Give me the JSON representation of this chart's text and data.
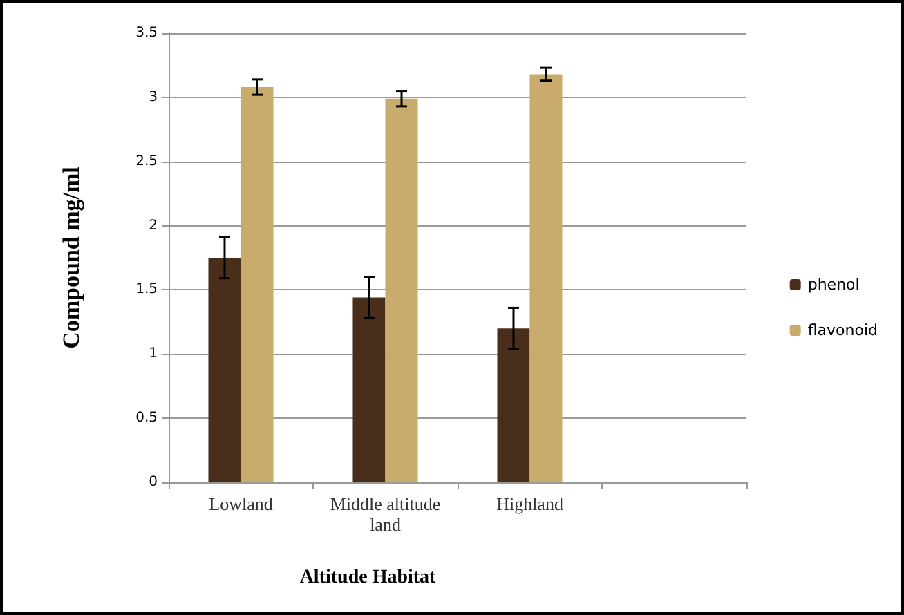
{
  "chart_data": {
    "type": "bar",
    "xlabel": "Altitude Habitat",
    "ylabel": "Compound mg/ml",
    "categories": [
      "Lowland",
      "Middle altitude\nland",
      "Highland",
      null
    ],
    "series": [
      {
        "name": "phenol",
        "color": "#4a2e1c",
        "values": [
          1.75,
          1.44,
          1.2,
          null
        ],
        "errors": [
          0.16,
          0.16,
          0.16,
          null
        ]
      },
      {
        "name": "flavonoid",
        "color": "#c9ab6e",
        "values": [
          3.08,
          2.99,
          3.18,
          null
        ],
        "errors": [
          0.06,
          0.06,
          0.05,
          null
        ]
      }
    ],
    "ylim": [
      0,
      3.5
    ],
    "yticks": [
      0,
      0.5,
      1,
      1.5,
      2,
      2.5,
      3,
      3.5
    ],
    "grid": "y",
    "legend": "right"
  }
}
